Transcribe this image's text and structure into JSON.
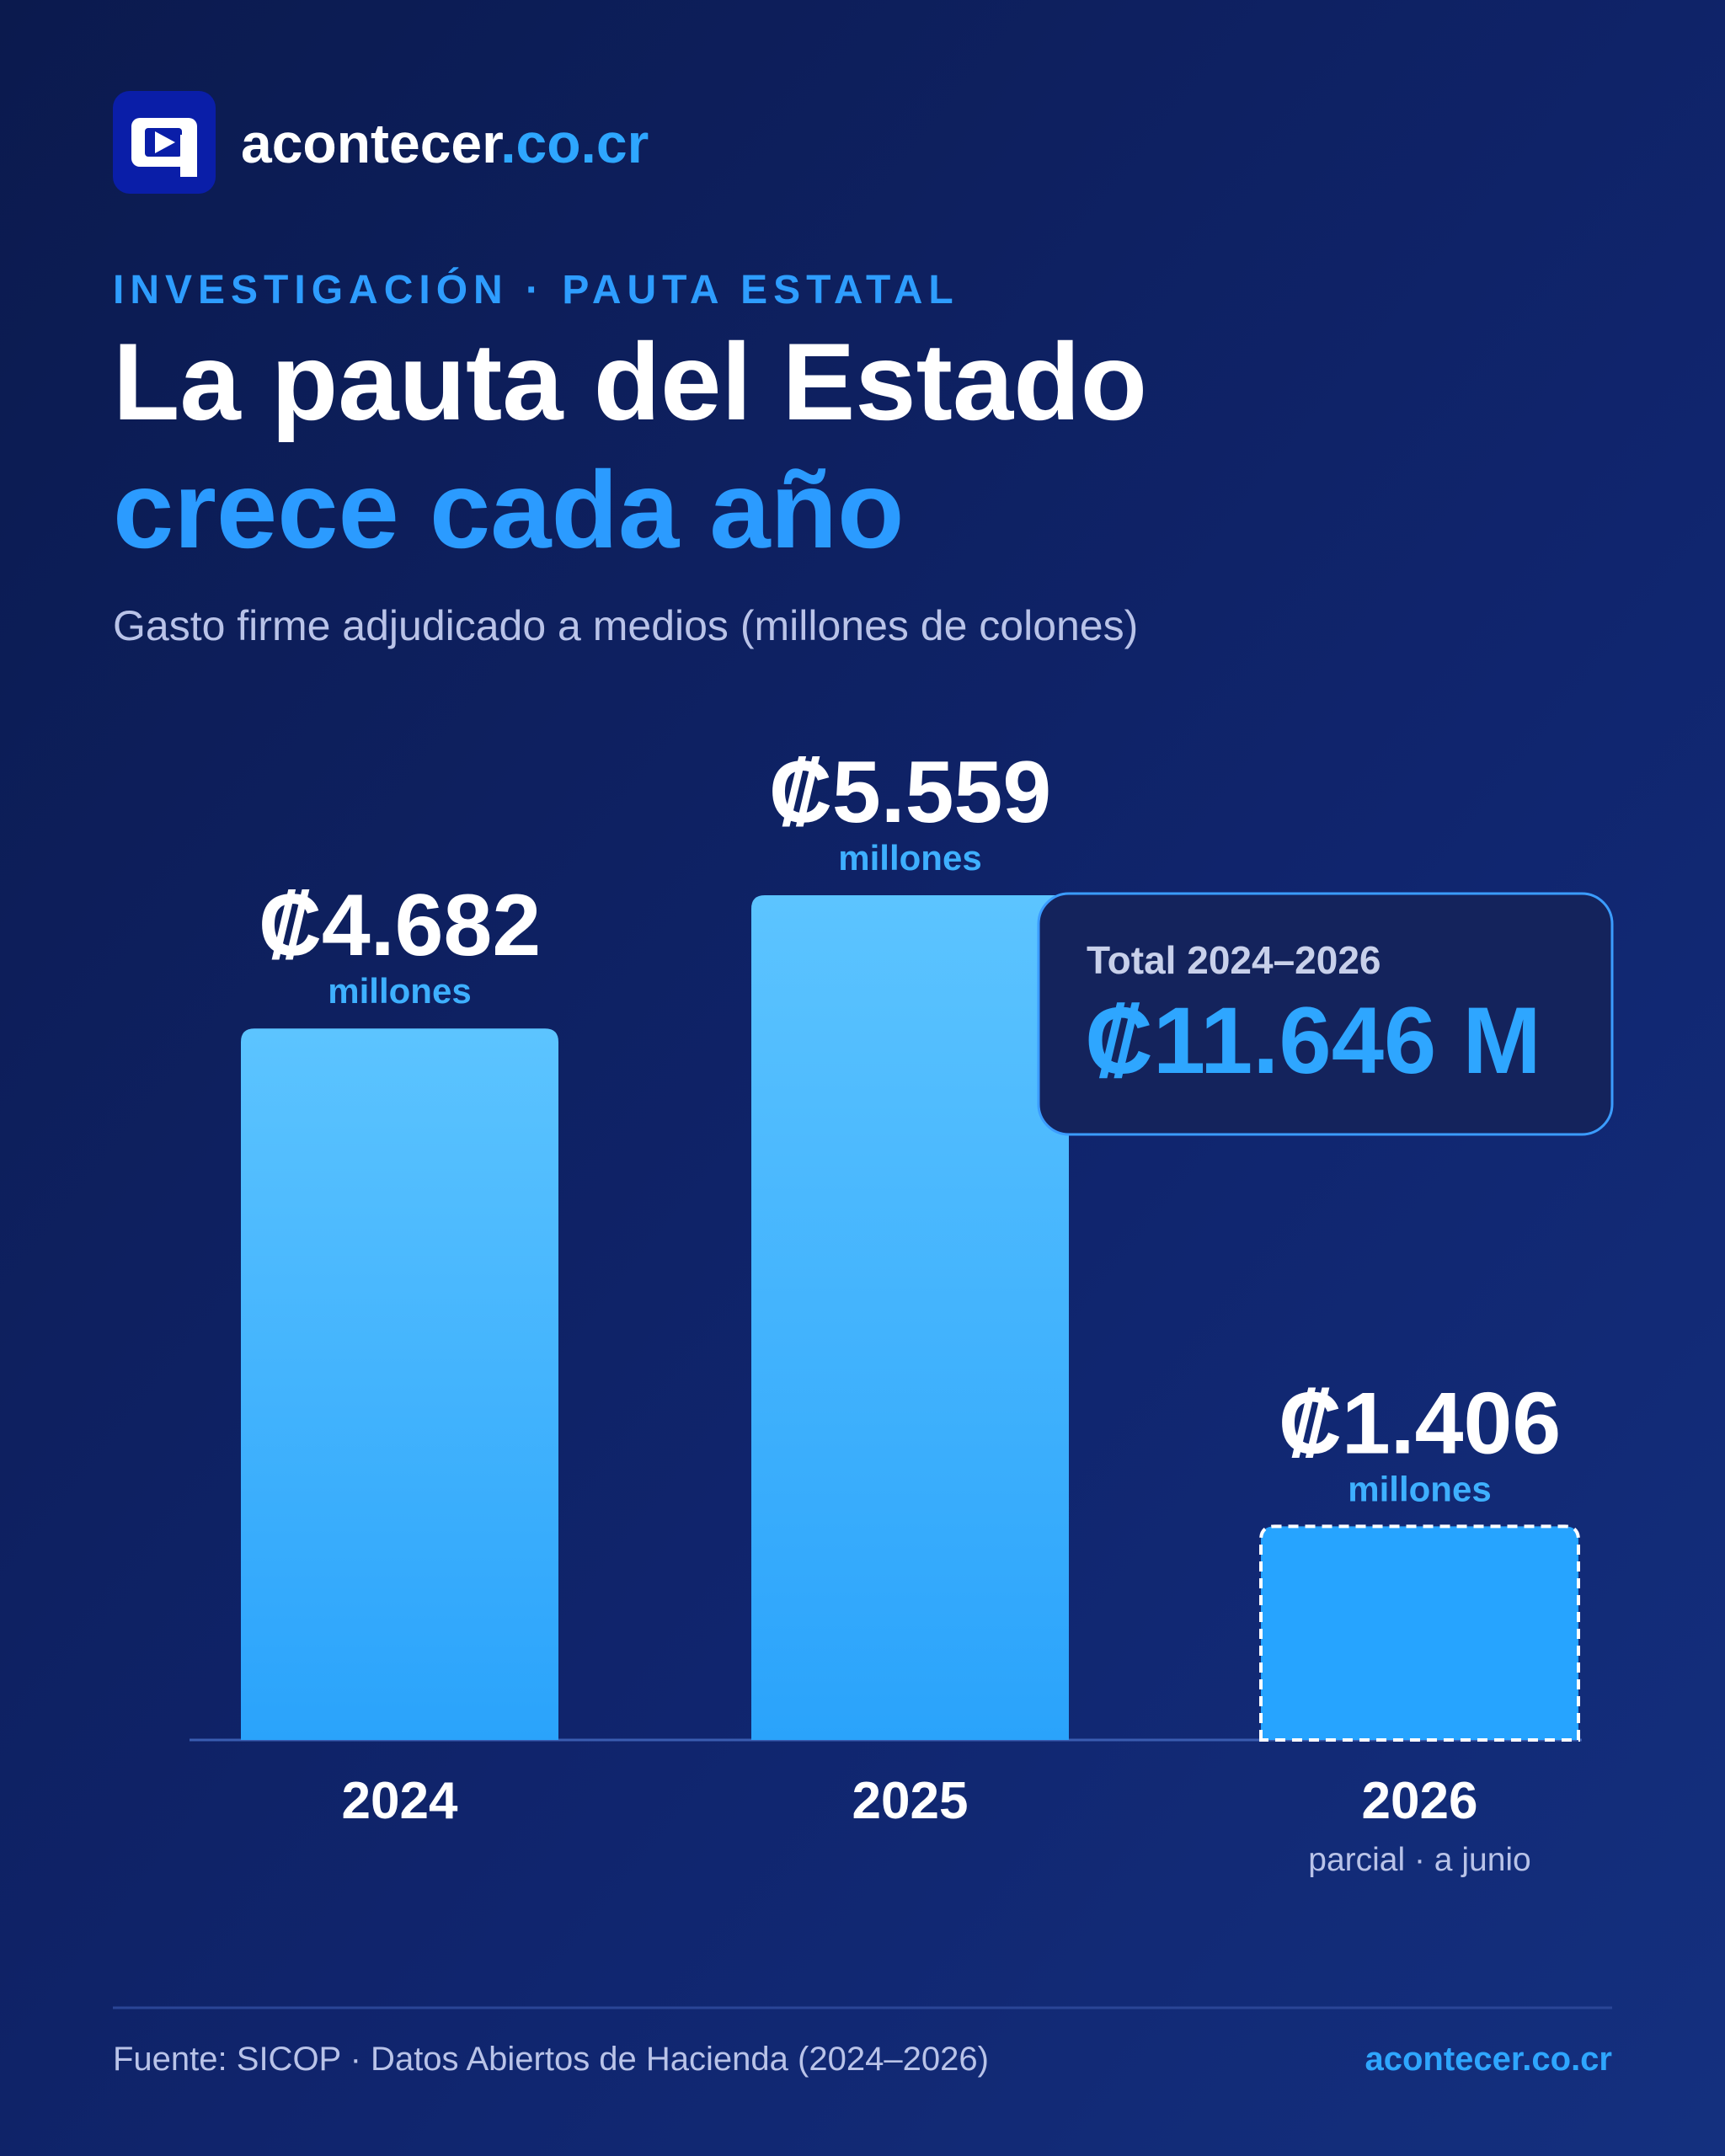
{
  "brand": {
    "name": "acontecer",
    "domain": ".co.cr"
  },
  "chart_data": {
    "type": "bar",
    "kicker": "INVESTIGACIÓN · PAUTA ESTATAL",
    "title": "La pauta del Estado",
    "title_highlight": "crece cada año",
    "subtitle": "Gasto firme adjudicado a medios (millones de colones)",
    "categories": [
      "2024",
      "2025",
      "2026"
    ],
    "values": [
      4682,
      5559,
      1406
    ],
    "value_labels": [
      "₡4.682",
      "₡5.559",
      "₡1.406"
    ],
    "value_unit": "millones",
    "category_notes": [
      null,
      null,
      "parcial · a junio"
    ],
    "dashed": [
      false,
      false,
      true
    ],
    "color": "#33abff",
    "total": {
      "label": "Total 2024–2026",
      "value": 11646,
      "value_label": "₡11.646 M"
    }
  },
  "footer": {
    "source": "Fuente: SICOP · Datos Abiertos de Hacienda (2024–2026)",
    "brand": "acontecer.co.cr"
  }
}
